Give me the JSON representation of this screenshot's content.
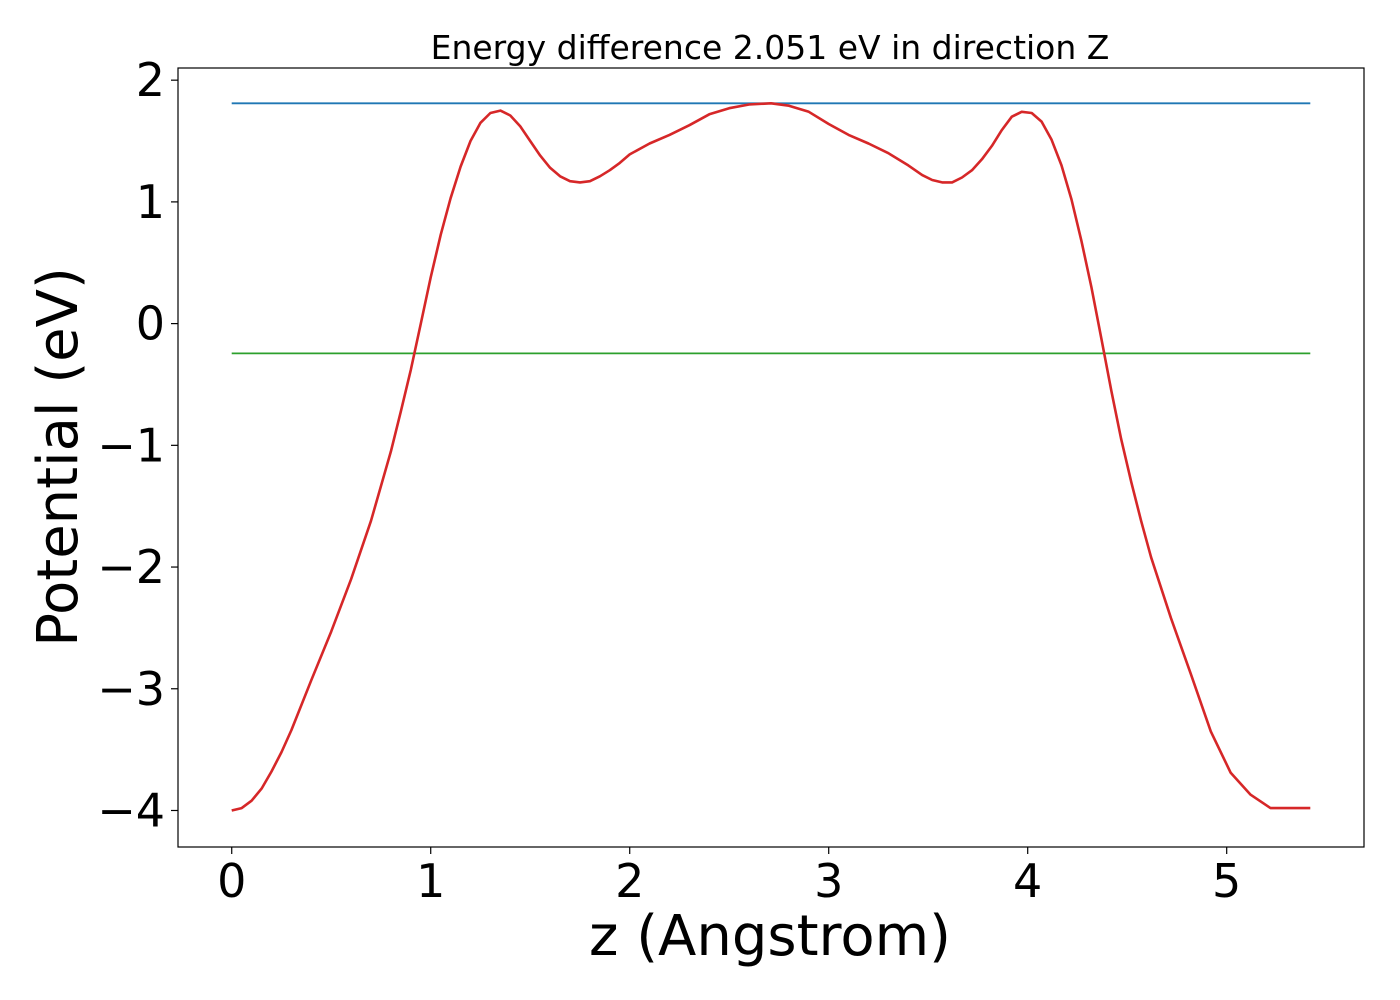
{
  "chart_data": {
    "type": "line",
    "title": "Energy difference 2.051 eV in direction Z",
    "xlabel": "z (Angstrom)",
    "ylabel": "Potential (eV)",
    "xlim": [
      -0.27,
      5.69
    ],
    "ylim": [
      -4.3,
      2.1
    ],
    "xticks": [
      0,
      1,
      2,
      3,
      4,
      5
    ],
    "xtick_labels": [
      "0",
      "1",
      "2",
      "3",
      "4",
      "5"
    ],
    "yticks": [
      -4,
      -3,
      -2,
      -1,
      0,
      1,
      2
    ],
    "ytick_labels": [
      "−4",
      "−3",
      "−2",
      "−1",
      "0",
      "1",
      "2"
    ],
    "grid": false,
    "series": [
      {
        "color": "#1f77b4",
        "x": [
          0,
          5.42
        ],
        "y": [
          1.81,
          1.81
        ]
      },
      {
        "color": "#2ca02c",
        "x": [
          0,
          5.42
        ],
        "y": [
          -0.245,
          -0.245
        ]
      },
      {
        "color": "#d62728",
        "x": [
          0,
          0.05,
          0.1,
          0.15,
          0.2,
          0.25,
          0.3,
          0.4,
          0.5,
          0.6,
          0.7,
          0.8,
          0.85,
          0.9,
          0.95,
          1.0,
          1.05,
          1.1,
          1.15,
          1.2,
          1.25,
          1.3,
          1.35,
          1.4,
          1.45,
          1.5,
          1.55,
          1.6,
          1.65,
          1.7,
          1.75,
          1.8,
          1.85,
          1.9,
          1.95,
          2.0,
          2.1,
          2.2,
          2.3,
          2.4,
          2.5,
          2.6,
          2.71,
          2.8,
          2.9,
          3.0,
          3.1,
          3.2,
          3.3,
          3.4,
          3.47,
          3.52,
          3.57,
          3.62,
          3.67,
          3.72,
          3.77,
          3.82,
          3.87,
          3.92,
          3.97,
          4.02,
          4.07,
          4.12,
          4.17,
          4.22,
          4.27,
          4.32,
          4.37,
          4.42,
          4.47,
          4.52,
          4.57,
          4.62,
          4.72,
          4.82,
          4.92,
          5.02,
          5.12,
          5.22,
          5.27,
          5.32,
          5.37,
          5.42
        ],
        "y": [
          -4.0,
          -3.98,
          -3.92,
          -3.82,
          -3.68,
          -3.52,
          -3.34,
          -2.93,
          -2.53,
          -2.1,
          -1.62,
          -1.05,
          -0.72,
          -0.38,
          0.0,
          0.38,
          0.73,
          1.03,
          1.29,
          1.5,
          1.65,
          1.73,
          1.75,
          1.71,
          1.62,
          1.5,
          1.38,
          1.28,
          1.21,
          1.17,
          1.16,
          1.17,
          1.21,
          1.26,
          1.32,
          1.39,
          1.48,
          1.55,
          1.63,
          1.72,
          1.77,
          1.8,
          1.81,
          1.79,
          1.74,
          1.64,
          1.55,
          1.48,
          1.4,
          1.3,
          1.22,
          1.18,
          1.16,
          1.16,
          1.2,
          1.26,
          1.35,
          1.46,
          1.59,
          1.7,
          1.74,
          1.73,
          1.66,
          1.51,
          1.3,
          1.02,
          0.68,
          0.3,
          -0.12,
          -0.55,
          -0.95,
          -1.3,
          -1.62,
          -1.92,
          -2.42,
          -2.88,
          -3.35,
          -3.69,
          -3.87,
          -3.98,
          -3.98,
          -3.98,
          -3.98,
          -3.98
        ]
      }
    ]
  }
}
